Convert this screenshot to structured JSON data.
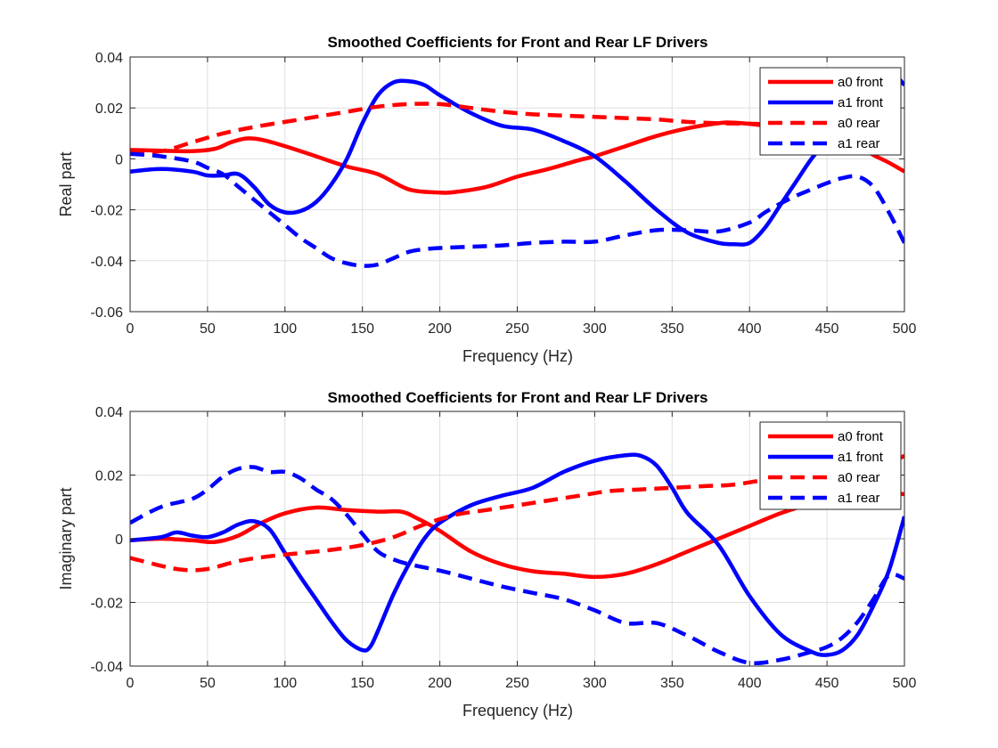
{
  "figure": {
    "background": "#ffffff"
  },
  "chart_data": [
    {
      "type": "line",
      "title": "Smoothed Coefficients for Front and Rear LF Drivers",
      "xlabel": "Frequency (Hz)",
      "ylabel": "Real part",
      "xlim": [
        0,
        500
      ],
      "ylim": [
        -0.06,
        0.04
      ],
      "xticks": [
        0,
        50,
        100,
        150,
        200,
        250,
        300,
        350,
        400,
        450,
        500
      ],
      "yticks": [
        -0.06,
        -0.04,
        -0.02,
        0,
        0.02,
        0.04
      ],
      "xtick_labels": [
        "0",
        "50",
        "100",
        "150",
        "200",
        "250",
        "300",
        "350",
        "400",
        "450",
        "500"
      ],
      "ytick_labels": [
        "-0.06",
        "-0.04",
        "-0.02",
        "0",
        "0.02",
        "0.04"
      ],
      "grid": true,
      "legend_position": "top-right",
      "series": [
        {
          "name": "a0 front",
          "color": "#ff0000",
          "style": "solid",
          "x": [
            0,
            20,
            40,
            55,
            65,
            75,
            85,
            100,
            120,
            140,
            160,
            180,
            200,
            210,
            230,
            250,
            270,
            290,
            300,
            320,
            340,
            360,
            380,
            390,
            410,
            430,
            450,
            470,
            480,
            490,
            500
          ],
          "y": [
            0.0035,
            0.0032,
            0.003,
            0.004,
            0.0065,
            0.008,
            0.0075,
            0.005,
            0.001,
            -0.003,
            -0.006,
            -0.012,
            -0.0132,
            -0.013,
            -0.011,
            -0.007,
            -0.004,
            -0.0005,
            0.001,
            0.005,
            0.009,
            0.012,
            0.014,
            0.0142,
            0.013,
            0.011,
            0.009,
            0.005,
            0.0015,
            -0.0015,
            -0.005
          ]
        },
        {
          "name": "a1 front",
          "color": "#0000ff",
          "style": "solid",
          "x": [
            0,
            20,
            40,
            50,
            60,
            70,
            80,
            90,
            100,
            110,
            120,
            130,
            140,
            150,
            160,
            170,
            180,
            190,
            200,
            220,
            240,
            260,
            280,
            300,
            320,
            340,
            360,
            380,
            390,
            400,
            410,
            420,
            430,
            440,
            450,
            460,
            470,
            480,
            490,
            500
          ],
          "y": [
            -0.005,
            -0.004,
            -0.005,
            -0.0065,
            -0.0065,
            -0.006,
            -0.011,
            -0.018,
            -0.021,
            -0.0205,
            -0.017,
            -0.01,
            0.0,
            0.014,
            0.025,
            0.03,
            0.0305,
            0.029,
            0.025,
            0.018,
            0.013,
            0.0115,
            0.007,
            0.001,
            -0.009,
            -0.02,
            -0.029,
            -0.033,
            -0.0335,
            -0.033,
            -0.027,
            -0.018,
            -0.009,
            0.0,
            0.007,
            0.013,
            0.023,
            0.033,
            0.035,
            0.029
          ]
        },
        {
          "name": "a0 rear",
          "color": "#ff0000",
          "style": "dashed",
          "x": [
            0,
            20,
            40,
            60,
            80,
            100,
            120,
            140,
            160,
            180,
            200,
            220,
            240,
            260,
            280,
            300,
            320,
            340,
            360,
            380,
            400,
            420,
            440,
            460,
            480,
            500
          ],
          "y": [
            0.003,
            0.003,
            0.0065,
            0.01,
            0.0125,
            0.0145,
            0.0165,
            0.0185,
            0.0205,
            0.0215,
            0.0215,
            0.02,
            0.0185,
            0.0175,
            0.017,
            0.0165,
            0.016,
            0.0155,
            0.0145,
            0.014,
            0.0138,
            0.0135,
            0.0135,
            0.0135,
            0.0135,
            0.0135
          ]
        },
        {
          "name": "a1 rear",
          "color": "#0000ff",
          "style": "dashed",
          "x": [
            0,
            20,
            40,
            50,
            60,
            70,
            80,
            90,
            100,
            110,
            120,
            130,
            140,
            150,
            160,
            170,
            180,
            190,
            200,
            220,
            240,
            260,
            280,
            300,
            320,
            340,
            360,
            380,
            400,
            410,
            420,
            430,
            440,
            450,
            460,
            470,
            480,
            490,
            500
          ],
          "y": [
            0.002,
            0.001,
            -0.001,
            -0.0035,
            -0.006,
            -0.011,
            -0.016,
            -0.021,
            -0.026,
            -0.031,
            -0.035,
            -0.039,
            -0.041,
            -0.042,
            -0.0415,
            -0.039,
            -0.0365,
            -0.0355,
            -0.035,
            -0.0345,
            -0.034,
            -0.033,
            -0.0325,
            -0.0325,
            -0.03,
            -0.028,
            -0.028,
            -0.0285,
            -0.025,
            -0.021,
            -0.0175,
            -0.0145,
            -0.012,
            -0.0095,
            -0.0075,
            -0.007,
            -0.011,
            -0.021,
            -0.033
          ]
        }
      ]
    },
    {
      "type": "line",
      "title": "Smoothed Coefficients for Front and Rear LF Drivers",
      "xlabel": "Frequency (Hz)",
      "ylabel": "Imaginary part",
      "xlim": [
        0,
        500
      ],
      "ylim": [
        -0.04,
        0.04
      ],
      "xticks": [
        0,
        50,
        100,
        150,
        200,
        250,
        300,
        350,
        400,
        450,
        500
      ],
      "yticks": [
        -0.04,
        -0.02,
        0,
        0.02,
        0.04
      ],
      "xtick_labels": [
        "0",
        "50",
        "100",
        "150",
        "200",
        "250",
        "300",
        "350",
        "400",
        "450",
        "500"
      ],
      "ytick_labels": [
        "-0.04",
        "-0.02",
        "0",
        "0.02",
        "0.04"
      ],
      "grid": true,
      "legend_position": "top-right",
      "series": [
        {
          "name": "a0 front",
          "color": "#ff0000",
          "style": "solid",
          "x": [
            0,
            20,
            40,
            55,
            70,
            85,
            100,
            120,
            140,
            160,
            175,
            185,
            200,
            220,
            240,
            260,
            280,
            300,
            320,
            340,
            360,
            380,
            400,
            420,
            440,
            460,
            480,
            490,
            500
          ],
          "y": [
            -0.0005,
            0.0,
            -0.0005,
            -0.001,
            0.001,
            0.005,
            0.008,
            0.0098,
            0.009,
            0.0085,
            0.0085,
            0.0065,
            0.0025,
            -0.004,
            -0.008,
            -0.0102,
            -0.011,
            -0.012,
            -0.011,
            -0.008,
            -0.004,
            0.0,
            0.004,
            0.008,
            0.011,
            0.013,
            0.0145,
            0.0145,
            0.014
          ]
        },
        {
          "name": "a1 front",
          "color": "#0000ff",
          "style": "solid",
          "x": [
            0,
            20,
            30,
            40,
            50,
            60,
            70,
            80,
            90,
            100,
            110,
            120,
            130,
            140,
            150,
            155,
            160,
            170,
            180,
            190,
            200,
            220,
            240,
            260,
            280,
            300,
            320,
            330,
            340,
            350,
            360,
            380,
            400,
            420,
            440,
            450,
            460,
            470,
            480,
            490,
            500
          ],
          "y": [
            -0.0005,
            0.0005,
            0.002,
            0.001,
            0.0005,
            0.002,
            0.0045,
            0.0055,
            0.003,
            -0.0045,
            -0.012,
            -0.019,
            -0.026,
            -0.032,
            -0.035,
            -0.034,
            -0.029,
            -0.0175,
            -0.008,
            0.0,
            0.005,
            0.0105,
            0.0135,
            0.016,
            0.021,
            0.0245,
            0.0262,
            0.026,
            0.023,
            0.016,
            0.008,
            -0.002,
            -0.018,
            -0.03,
            -0.0355,
            -0.0365,
            -0.035,
            -0.03,
            -0.021,
            -0.01,
            0.007
          ]
        },
        {
          "name": "a0 rear",
          "color": "#ff0000",
          "style": "dashed",
          "x": [
            0,
            20,
            35,
            50,
            70,
            90,
            110,
            130,
            150,
            170,
            190,
            210,
            230,
            250,
            270,
            290,
            310,
            330,
            350,
            370,
            390,
            410,
            430,
            450,
            470,
            490,
            500
          ],
          "y": [
            -0.006,
            -0.0085,
            -0.0098,
            -0.0095,
            -0.007,
            -0.0055,
            -0.0045,
            -0.0035,
            -0.002,
            0.0005,
            0.0045,
            0.0075,
            0.009,
            0.0105,
            0.012,
            0.0135,
            0.015,
            0.0155,
            0.016,
            0.0165,
            0.017,
            0.0185,
            0.0195,
            0.02,
            0.0215,
            0.024,
            0.026
          ]
        },
        {
          "name": "a1 rear",
          "color": "#0000ff",
          "style": "dashed",
          "x": [
            0,
            20,
            40,
            50,
            60,
            70,
            80,
            90,
            100,
            110,
            120,
            130,
            140,
            150,
            160,
            170,
            180,
            200,
            220,
            240,
            260,
            280,
            300,
            320,
            340,
            360,
            380,
            400,
            420,
            440,
            450,
            460,
            470,
            480,
            490,
            500
          ],
          "y": [
            0.005,
            0.01,
            0.0125,
            0.0155,
            0.0195,
            0.022,
            0.0225,
            0.021,
            0.021,
            0.019,
            0.0155,
            0.0125,
            0.0075,
            0.0015,
            -0.004,
            -0.0065,
            -0.008,
            -0.01,
            -0.0125,
            -0.015,
            -0.017,
            -0.019,
            -0.0225,
            -0.0265,
            -0.0265,
            -0.0305,
            -0.0355,
            -0.039,
            -0.038,
            -0.0355,
            -0.034,
            -0.031,
            -0.026,
            -0.019,
            -0.0115,
            -0.0125
          ]
        }
      ]
    }
  ]
}
